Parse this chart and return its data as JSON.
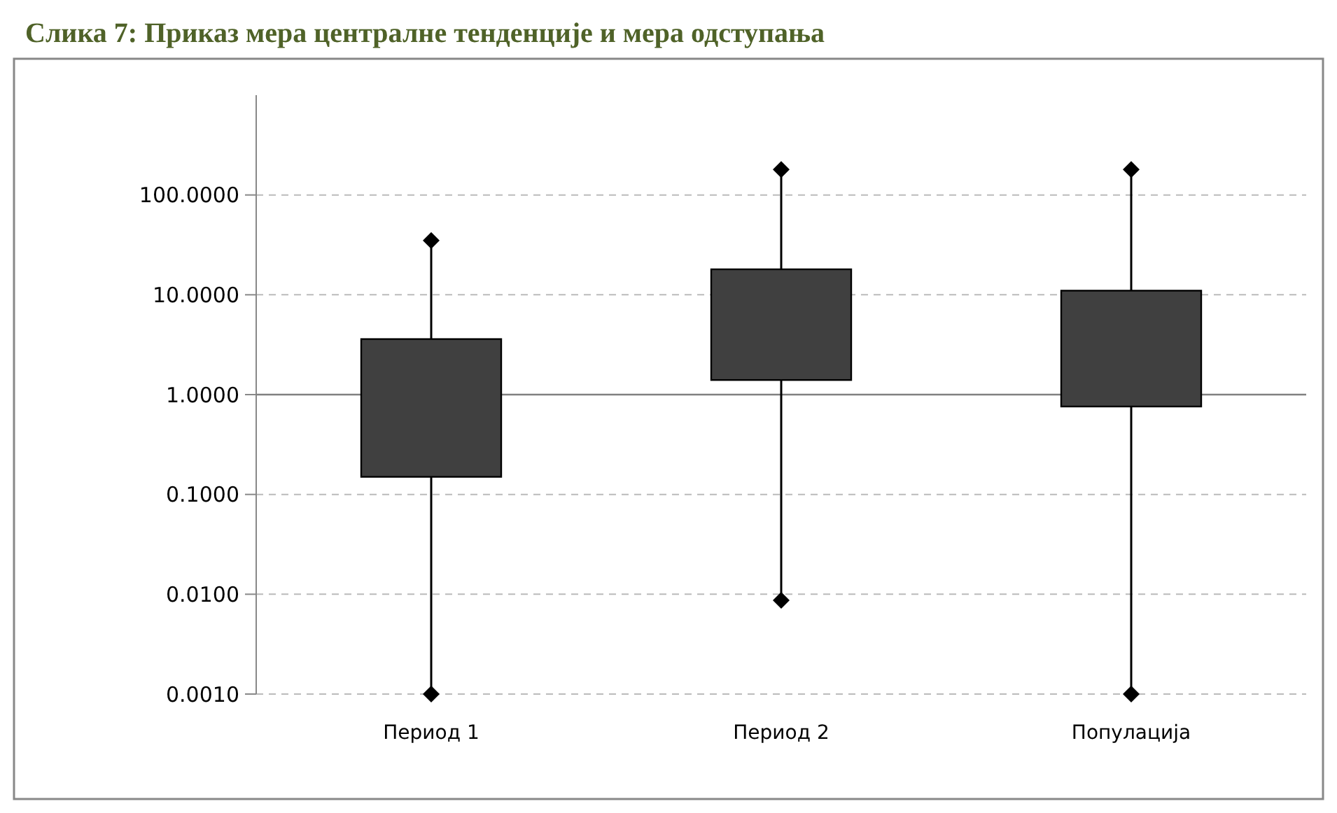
{
  "chart_data": {
    "type": "box",
    "title": "Слика 7: Приказ мера централне тенденције и мера одступања",
    "categories": [
      "Период 1",
      "Период 2",
      "Популација"
    ],
    "color": "#404040",
    "boxes": [
      {
        "low": 0.001,
        "q1": 0.15,
        "q3": 3.6,
        "high": 35
      },
      {
        "low": 0.0087,
        "q1": 1.4,
        "q3": 18,
        "high": 180
      },
      {
        "low": 0.001,
        "q1": 0.76,
        "q3": 11,
        "high": 180
      }
    ],
    "log": true,
    "ylim": [
      0.001,
      1000
    ],
    "yticks": [
      {
        "value": 0.001,
        "label": "0.0010"
      },
      {
        "value": 0.01,
        "label": "0.0100"
      },
      {
        "value": 0.1,
        "label": "0.1000"
      },
      {
        "value": 1,
        "label": "1.0000"
      },
      {
        "value": 10,
        "label": "10.0000"
      },
      {
        "value": 100,
        "label": "100.0000"
      }
    ],
    "grid": "y",
    "marker": "diamond",
    "ref_lines": [
      {
        "axis": "y",
        "value": 1,
        "color": "#808080"
      }
    ]
  }
}
